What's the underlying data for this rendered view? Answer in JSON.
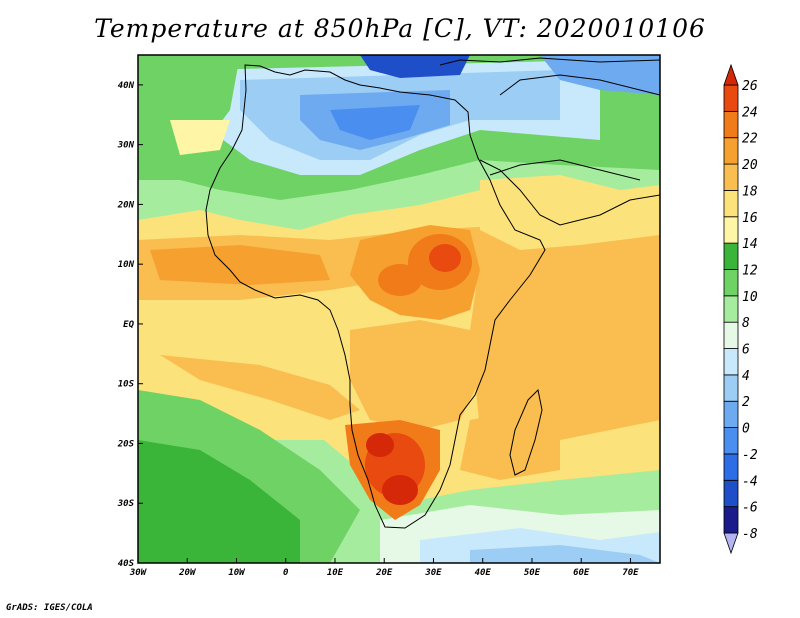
{
  "title": "Temperature at 850hPa [C], VT: 2020010106",
  "footer": "GrADS: IGES/COLA",
  "chart_data": {
    "type": "heatmap",
    "variable": "Temperature at 850hPa",
    "units": "C",
    "valid_time": "2020010106",
    "x_axis": {
      "label": "",
      "range": [
        -30,
        76
      ],
      "ticks": [
        -30,
        -20,
        -10,
        0,
        10,
        20,
        30,
        40,
        50,
        60,
        70
      ],
      "tick_labels": [
        "30W",
        "20W",
        "10W",
        "0",
        "10E",
        "20E",
        "30E",
        "40E",
        "50E",
        "60E",
        "70E"
      ]
    },
    "y_axis": {
      "label": "",
      "range": [
        -40,
        45
      ],
      "ticks": [
        -40,
        -30,
        -20,
        -10,
        0,
        10,
        20,
        30,
        40
      ],
      "tick_labels": [
        "40S",
        "30S",
        "20S",
        "10S",
        "EQ",
        "10N",
        "20N",
        "30N",
        "40N"
      ]
    },
    "colorbar": {
      "placement": "right",
      "levels": [
        -8,
        -6,
        -4,
        -2,
        0,
        2,
        4,
        6,
        8,
        10,
        12,
        14,
        16,
        18,
        20,
        22,
        24,
        26
      ],
      "level_labels": [
        "-8",
        "-6",
        "-4",
        "-2",
        "0",
        "2",
        "4",
        "6",
        "8",
        "10",
        "12",
        "14",
        "16",
        "18",
        "20",
        "22",
        "24",
        "26"
      ],
      "colors": [
        "#b4b4f0",
        "#1b1b8c",
        "#1f4fc8",
        "#2d6ee6",
        "#4a8ef0",
        "#6eaaf0",
        "#9ccdf5",
        "#c8e8fb",
        "#e6f8e6",
        "#a6ec9e",
        "#6ed264",
        "#3ab53a",
        "#fff5a6",
        "#fce27a",
        "#f9bd50",
        "#f6a12f",
        "#f27b19",
        "#e84a10",
        "#d52808"
      ]
    },
    "grid": false
  }
}
